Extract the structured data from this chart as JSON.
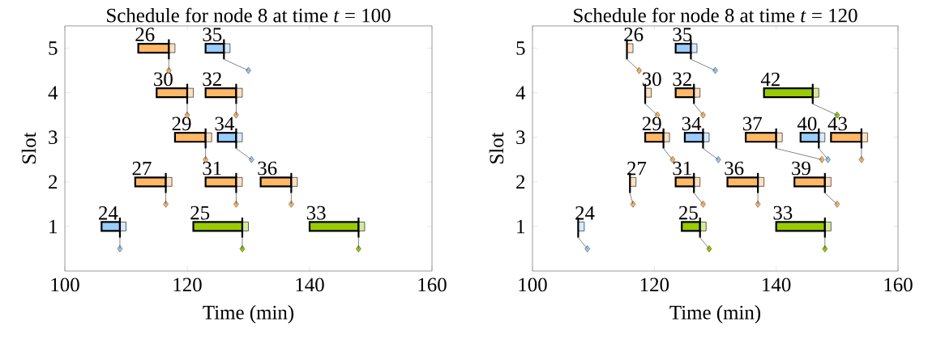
{
  "chart_data": [
    {
      "type": "bar",
      "orientation": "horizontal",
      "title": "Schedule for node 8 at time *t* = 100",
      "xlabel": "Time (min)",
      "ylabel": "Slot",
      "xlim": [
        100,
        160
      ],
      "xticks": [
        100,
        120,
        140,
        160
      ],
      "ylim": [
        0,
        5.5
      ],
      "yticks": [
        1,
        2,
        3,
        4,
        5
      ],
      "marker": "diamond",
      "series": [
        {
          "type": "bar",
          "color": "#ffb866",
          "x": [
            5,
            4,
            3,
            2
          ],
          "base": [
            112,
            115,
            118,
            111.5
          ],
          "values": [
            5,
            5,
            5,
            5
          ]
        },
        {
          "type": "bar",
          "color": "#ffe0bf",
          "x": [
            5,
            4,
            3,
            2
          ],
          "base": [
            117,
            120,
            123,
            116.5
          ],
          "values": [
            1,
            1,
            1,
            1
          ]
        },
        {
          "type": "scatter",
          "color": "#ffb866",
          "x": [
            4.5,
            3.5,
            2.5,
            1.5
          ],
          "values": [
            117,
            120,
            123,
            116.5
          ]
        },
        {
          "type": "bar",
          "color": "#ffb866",
          "x": [
            4,
            2
          ],
          "base": [
            123,
            123
          ],
          "values": [
            5,
            5
          ]
        },
        {
          "type": "bar",
          "color": "#ffe0bf",
          "x": [
            4,
            2
          ],
          "base": [
            128,
            128
          ],
          "values": [
            1,
            1
          ]
        },
        {
          "type": "scatter",
          "color": "#ffb866",
          "x": [
            3.5,
            1.5
          ],
          "values": [
            128,
            128
          ]
        },
        {
          "type": "bar",
          "color": "#ffb866",
          "x": [
            2
          ],
          "base": [
            132
          ],
          "values": [
            5
          ]
        },
        {
          "type": "bar",
          "color": "#ffe0bf",
          "x": [
            2
          ],
          "base": [
            137
          ],
          "values": [
            1
          ]
        },
        {
          "type": "scatter",
          "color": "#ffb866",
          "x": [
            1.5
          ],
          "values": [
            137
          ]
        },
        {
          "type": "bar",
          "color": "#99ccff",
          "x": [
            5,
            3,
            1
          ],
          "base": [
            123,
            125,
            106
          ],
          "values": [
            3,
            3,
            3
          ]
        },
        {
          "type": "bar",
          "color": "#d5eaff",
          "x": [
            5,
            3,
            1
          ],
          "base": [
            126,
            128,
            109
          ],
          "values": [
            1,
            1,
            1
          ]
        },
        {
          "type": "scatter",
          "color": "#99ccff",
          "x": [
            4.5,
            2.5,
            0.5
          ],
          "values": [
            130,
            130.5,
            109
          ]
        },
        {
          "type": "bar",
          "color": "#99cc00",
          "x": [
            1
          ],
          "base": [
            121
          ],
          "values": [
            8
          ]
        },
        {
          "type": "bar",
          "color": "#d5eb99",
          "x": [
            1
          ],
          "base": [
            129
          ],
          "values": [
            1
          ]
        },
        {
          "type": "scatter",
          "color": "#99cc00",
          "x": [
            0.5
          ],
          "values": [
            129
          ]
        },
        {
          "type": "bar",
          "color": "#99cc00",
          "x": [
            1
          ],
          "base": [
            140
          ],
          "values": [
            8
          ]
        },
        {
          "type": "bar",
          "color": "#d5eb99",
          "x": [
            1
          ],
          "base": [
            148
          ],
          "values": [
            1
          ]
        },
        {
          "type": "scatter",
          "color": "#99cc00",
          "x": [
            0.5
          ],
          "values": [
            148
          ]
        }
      ],
      "annotations": [
        {
          "text": "26",
          "x": 112,
          "y": 5
        },
        {
          "text": "35",
          "x": 123,
          "y": 5
        },
        {
          "text": "30",
          "x": 115,
          "y": 4
        },
        {
          "text": "32",
          "x": 123,
          "y": 4
        },
        {
          "text": "29",
          "x": 118,
          "y": 3
        },
        {
          "text": "34",
          "x": 125,
          "y": 3
        },
        {
          "text": "27",
          "x": 111.5,
          "y": 2
        },
        {
          "text": "31",
          "x": 123,
          "y": 2
        },
        {
          "text": "36",
          "x": 132,
          "y": 2
        },
        {
          "text": "24",
          "x": 106,
          "y": 1
        },
        {
          "text": "25",
          "x": 121,
          "y": 1
        },
        {
          "text": "33",
          "x": 140,
          "y": 1
        }
      ]
    },
    {
      "type": "bar",
      "orientation": "horizontal",
      "title": "Schedule for node 8 at time *t* = 120",
      "xlabel": "Time (min)",
      "ylabel": "Slot",
      "xlim": [
        100,
        160
      ],
      "xticks": [
        100,
        120,
        140,
        160
      ],
      "ylim": [
        0,
        5.5
      ],
      "yticks": [
        1,
        2,
        3,
        4,
        5
      ],
      "marker": "diamond",
      "series": [
        {
          "type": "bar",
          "color": "#ffb866",
          "x": [
            4,
            3,
            2
          ],
          "base": [
            123.5,
            118.5,
            123.5
          ],
          "values": [
            3,
            3,
            3
          ]
        },
        {
          "type": "bar",
          "color": "#ffe0bf",
          "x": [
            5,
            4,
            3,
            2
          ],
          "base": [
            115.5,
            118.5,
            121.5,
            116
          ],
          "values": [
            1,
            1,
            1,
            1
          ]
        },
        {
          "type": "scatter",
          "color": "#ffb866",
          "x": [
            4.5,
            3.5,
            2.5,
            1.5
          ],
          "values": [
            117.5,
            120.5,
            123,
            116.5
          ]
        },
        {
          "type": "bar",
          "color": "#ffb866",
          "x": [
            3
          ],
          "base": [
            135
          ],
          "values": [
            5
          ]
        },
        {
          "type": "bar",
          "color": "#ffe0bf",
          "x": [
            4,
            3,
            2
          ],
          "base": [
            126.5,
            140,
            126.5
          ],
          "values": [
            1,
            1,
            1
          ]
        },
        {
          "type": "scatter",
          "color": "#ffb866",
          "x": [
            3.5,
            2.5,
            1.5
          ],
          "values": [
            128,
            147.5,
            128
          ]
        },
        {
          "type": "bar",
          "color": "#ffb866",
          "x": [
            3,
            2
          ],
          "base": [
            149,
            132
          ],
          "values": [
            5,
            5
          ]
        },
        {
          "type": "bar",
          "color": "#ffe0bf",
          "x": [
            3,
            2
          ],
          "base": [
            154,
            137
          ],
          "values": [
            1,
            1
          ]
        },
        {
          "type": "scatter",
          "color": "#ffb866",
          "x": [
            2.5,
            1.5
          ],
          "values": [
            154,
            137
          ]
        },
        {
          "type": "bar",
          "color": "#ffb866",
          "x": [
            2
          ],
          "base": [
            143
          ],
          "values": [
            5
          ]
        },
        {
          "type": "bar",
          "color": "#ffe0bf",
          "x": [
            2
          ],
          "base": [
            148
          ],
          "values": [
            1
          ]
        },
        {
          "type": "scatter",
          "color": "#ffb866",
          "x": [
            1.5
          ],
          "values": [
            150
          ]
        },
        {
          "type": "bar",
          "color": "#99ccff",
          "x": [
            5,
            3
          ],
          "base": [
            123.5,
            125
          ],
          "values": [
            2.5,
            3
          ]
        },
        {
          "type": "bar",
          "color": "#d5eaff",
          "x": [
            5,
            3,
            1
          ],
          "base": [
            126,
            128,
            107.5
          ],
          "values": [
            1,
            1,
            1
          ]
        },
        {
          "type": "scatter",
          "color": "#99ccff",
          "x": [
            4.5,
            2.5,
            0.5
          ],
          "values": [
            130,
            130.5,
            109
          ]
        },
        {
          "type": "bar",
          "color": "#99ccff",
          "x": [
            3
          ],
          "base": [
            144
          ],
          "values": [
            3
          ]
        },
        {
          "type": "bar",
          "color": "#d5eaff",
          "x": [
            3
          ],
          "base": [
            147
          ],
          "values": [
            1
          ]
        },
        {
          "type": "scatter",
          "color": "#99ccff",
          "x": [
            2.5
          ],
          "values": [
            148.5
          ]
        },
        {
          "type": "bar",
          "color": "#99cc00",
          "x": [
            4,
            1
          ],
          "base": [
            138,
            124.5
          ],
          "values": [
            8,
            3
          ]
        },
        {
          "type": "bar",
          "color": "#d5eb99",
          "x": [
            4,
            1
          ],
          "base": [
            146,
            127.5
          ],
          "values": [
            1,
            1
          ]
        },
        {
          "type": "scatter",
          "color": "#99cc00",
          "x": [
            3.5,
            0.5
          ],
          "values": [
            150,
            129
          ]
        },
        {
          "type": "bar",
          "color": "#99cc00",
          "x": [
            1
          ],
          "base": [
            140
          ],
          "values": [
            8
          ]
        },
        {
          "type": "bar",
          "color": "#d5eb99",
          "x": [
            1
          ],
          "base": [
            148
          ],
          "values": [
            1
          ]
        },
        {
          "type": "scatter",
          "color": "#99cc00",
          "x": [
            0.5
          ],
          "values": [
            148
          ]
        }
      ],
      "annotations": [
        {
          "text": "26",
          "x": 115.5,
          "y": 5
        },
        {
          "text": "35",
          "x": 123.5,
          "y": 5
        },
        {
          "text": "30",
          "x": 118.5,
          "y": 4
        },
        {
          "text": "32",
          "x": 123.5,
          "y": 4
        },
        {
          "text": "42",
          "x": 138,
          "y": 4
        },
        {
          "text": "29",
          "x": 118.5,
          "y": 3
        },
        {
          "text": "34",
          "x": 125,
          "y": 3
        },
        {
          "text": "37",
          "x": 135,
          "y": 3
        },
        {
          "text": "40",
          "x": 144,
          "y": 3
        },
        {
          "text": "43",
          "x": 149,
          "y": 3
        },
        {
          "text": "27",
          "x": 116,
          "y": 2
        },
        {
          "text": "31",
          "x": 123.5,
          "y": 2
        },
        {
          "text": "36",
          "x": 132,
          "y": 2
        },
        {
          "text": "39",
          "x": 143,
          "y": 2
        },
        {
          "text": "24",
          "x": 107.5,
          "y": 1
        },
        {
          "text": "25",
          "x": 124.5,
          "y": 1
        },
        {
          "text": "33",
          "x": 140,
          "y": 1
        }
      ]
    }
  ]
}
